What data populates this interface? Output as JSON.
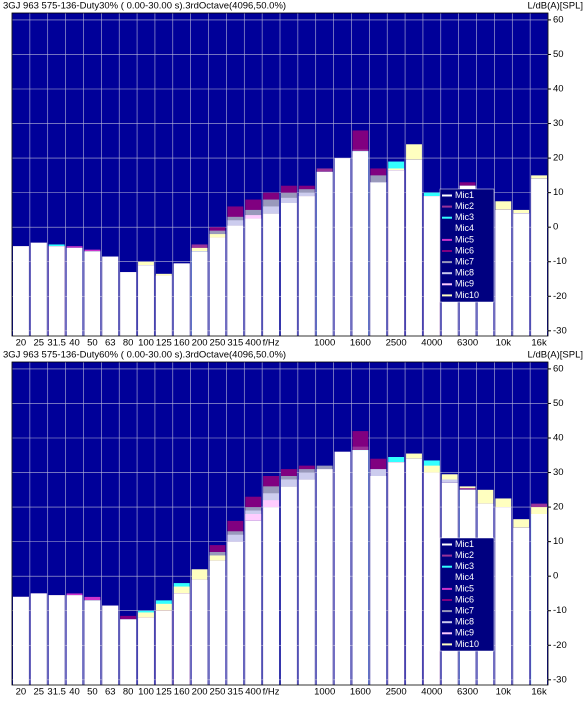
{
  "chart_data": [
    {
      "type": "bar",
      "title": "3GJ 963 575-136-Duty30% ( 0.00-30.00 s).3rdOctave(4096,50.0%)",
      "ylabel": "L/dB(A)[SPL]",
      "xlabel": "f/Hz",
      "categories": [
        "20",
        "25",
        "31.5",
        "40",
        "50",
        "63",
        "80",
        "100",
        "125",
        "160",
        "200",
        "250",
        "315",
        "400",
        null,
        null,
        null,
        "1000",
        null,
        "1600",
        null,
        "2500",
        null,
        "4000",
        null,
        "6300",
        null,
        "10k",
        null,
        "16k"
      ],
      "ylim": [
        -31.5,
        62
      ],
      "yticks": [
        -30,
        -20,
        -10,
        0,
        10,
        20,
        30,
        40,
        50,
        60
      ],
      "grid": true,
      "legend": "right",
      "background": "#000099",
      "series": [
        {
          "name": "Mic1",
          "color": "#ffffff",
          "values": [
            -5.5,
            -4.5,
            -5.5,
            -6,
            -7,
            -8.5,
            -13,
            -11,
            -14,
            -10.5,
            -7,
            -3,
            0.5,
            2.5,
            4,
            7,
            9,
            16,
            20,
            22,
            13,
            16.5,
            19.5,
            9,
            5,
            12,
            9,
            5,
            4,
            14
          ]
        },
        {
          "name": "Mic2",
          "color": "#993399",
          "values": [
            -5.5,
            -4.5,
            -5.5,
            -6,
            -7,
            -8.5,
            -13,
            -11,
            -14,
            -10.5,
            -5,
            -3,
            0.5,
            2.5,
            4,
            7,
            9,
            17,
            20,
            22.5,
            13,
            16.5,
            19.5,
            9,
            5,
            12,
            9,
            5,
            4,
            14
          ]
        },
        {
          "name": "Mic3",
          "color": "#33ffff",
          "values": [
            -5.5,
            -4.5,
            -5,
            -6,
            -7,
            -8.5,
            -13,
            -11,
            -14,
            -10.5,
            -7,
            -3,
            0.5,
            2.5,
            4,
            7,
            9,
            16,
            20,
            22,
            13,
            19,
            19.5,
            10,
            5,
            12,
            9,
            5,
            4,
            14
          ]
        },
        {
          "name": "Mic4",
          "color": "#000080",
          "values": [
            -5.5,
            -4.5,
            -5.5,
            -6,
            -7,
            -8.5,
            -13,
            -11,
            -14,
            -10.5,
            -7,
            -3,
            0.5,
            2.5,
            4,
            7,
            9,
            16,
            20,
            22,
            13,
            16.5,
            19.5,
            9,
            5,
            12,
            9,
            5,
            4,
            14
          ]
        },
        {
          "name": "Mic5",
          "color": "#cc33cc",
          "values": [
            -5.5,
            -4.5,
            -5.5,
            -5.5,
            -6.5,
            -8.5,
            -13,
            -11,
            -14,
            -10.5,
            -7,
            -3,
            0.5,
            2.5,
            4,
            7,
            9,
            16,
            20,
            22,
            13,
            16.5,
            19.5,
            9,
            5,
            12,
            9,
            5,
            4,
            14
          ]
        },
        {
          "name": "Mic6",
          "color": "#800080",
          "values": [
            -5.5,
            -4.5,
            -5.5,
            -6,
            -7,
            -8.5,
            -13,
            -11,
            -14,
            -10.5,
            -7,
            0,
            6,
            8,
            10,
            12,
            12,
            16,
            20,
            28,
            17,
            16.5,
            19.5,
            9,
            5,
            13,
            9,
            5,
            4,
            14
          ]
        },
        {
          "name": "Mic7",
          "color": "#9999bb",
          "values": [
            -5.5,
            -4.5,
            -5.5,
            -6,
            -7,
            -8.5,
            -13,
            -11,
            -14,
            -10.5,
            -7,
            -1,
            3,
            5,
            8,
            10,
            11,
            16,
            20,
            22,
            15,
            16.5,
            19.5,
            9,
            5,
            12,
            9,
            5,
            4,
            14
          ]
        },
        {
          "name": "Mic8",
          "color": "#ccccee",
          "values": [
            -5.5,
            -4.5,
            -5.5,
            -6,
            -7,
            -8.5,
            -13,
            -11,
            -14,
            -10.5,
            -7,
            -3,
            2,
            2.5,
            6,
            8.5,
            10,
            16,
            20,
            22,
            13,
            16.5,
            19.5,
            9,
            5,
            12,
            9,
            5,
            4,
            14
          ]
        },
        {
          "name": "Mic9",
          "color": "#ffccff",
          "values": [
            -5.5,
            -4.5,
            -5.5,
            -6,
            -7,
            -8.5,
            -13,
            -11,
            -14,
            -10.5,
            -7,
            -3,
            0.5,
            3.5,
            4,
            7,
            9,
            16,
            20,
            22,
            13,
            16.5,
            19.5,
            9,
            5,
            12,
            9,
            5,
            4,
            14
          ]
        },
        {
          "name": "Mic10",
          "color": "#ffffc0",
          "values": [
            -5.5,
            -4.5,
            -5.5,
            -6,
            -7,
            -8.5,
            -13,
            -10,
            -13.5,
            -10.5,
            -6,
            -2,
            0.5,
            2.5,
            4,
            7,
            9,
            16,
            20,
            22,
            13,
            17,
            24,
            9,
            5,
            12,
            10,
            7.5,
            5,
            15
          ]
        }
      ]
    },
    {
      "type": "bar",
      "title": "3GJ 963 575-136-Duty60% ( 0.00-30.00 s).3rdOctave(4096,50.0%)",
      "ylabel": "L/dB(A)[SPL]",
      "xlabel": "f/Hz",
      "categories": [
        "20",
        "25",
        "31.5",
        "40",
        "50",
        "63",
        "80",
        "100",
        "125",
        "160",
        "200",
        "250",
        "315",
        "400",
        null,
        null,
        null,
        "1000",
        null,
        "1600",
        null,
        "2500",
        null,
        "4000",
        null,
        "6300",
        null,
        "10k",
        null,
        "16k"
      ],
      "ylim": [
        -31.5,
        62
      ],
      "yticks": [
        -30,
        -20,
        -10,
        0,
        10,
        20,
        30,
        40,
        50,
        60
      ],
      "grid": true,
      "legend": "right",
      "background": "#000099",
      "series": [
        {
          "name": "Mic1",
          "color": "#ffffff",
          "values": [
            -6,
            -5,
            -5.5,
            -5.5,
            -7,
            -8.5,
            -12.5,
            -12,
            -10,
            -5,
            -1,
            4.5,
            10,
            16,
            20,
            26,
            28,
            31,
            36,
            36.5,
            29,
            33,
            34,
            30,
            27,
            25,
            21,
            20,
            14,
            18
          ]
        },
        {
          "name": "Mic2",
          "color": "#993399",
          "values": [
            -6,
            -5,
            -5.5,
            -5.5,
            -7,
            -8.5,
            -12.5,
            -12,
            -10,
            -5,
            -1,
            4.5,
            10,
            16,
            20,
            26,
            28,
            31,
            36,
            37.5,
            29,
            33,
            34,
            30,
            27,
            25.5,
            21,
            20,
            14,
            21
          ]
        },
        {
          "name": "Mic3",
          "color": "#33ffff",
          "values": [
            -6,
            -5,
            -5.5,
            -5.5,
            -7,
            -8.5,
            -12.5,
            -10,
            -7,
            -2,
            -1,
            4.5,
            10,
            16,
            20,
            26,
            28,
            31,
            36,
            36.5,
            29,
            34.5,
            34,
            33.5,
            27,
            25,
            21,
            20,
            14,
            18
          ]
        },
        {
          "name": "Mic4",
          "color": "#000080",
          "values": [
            -6,
            -5,
            -5.5,
            -5.5,
            -7,
            -8.5,
            -12.5,
            -12,
            -10,
            -5,
            -1,
            4.5,
            10,
            16,
            20,
            26,
            28,
            31,
            36,
            36.5,
            29,
            33,
            34,
            30,
            27,
            25,
            21,
            20,
            14,
            18
          ]
        },
        {
          "name": "Mic5",
          "color": "#cc33cc",
          "values": [
            -6,
            -5,
            -5.5,
            -5,
            -6,
            -8.5,
            -12.5,
            -12,
            -10,
            -5,
            -1,
            4.5,
            10,
            16,
            20,
            26,
            28,
            31,
            36,
            36.5,
            29,
            33,
            34,
            30,
            27,
            25,
            21,
            20,
            14,
            18
          ]
        },
        {
          "name": "Mic6",
          "color": "#800080",
          "values": [
            -6,
            -5,
            -5.5,
            -5.5,
            -7,
            -8.5,
            -11.5,
            -12,
            -10,
            -5,
            -1,
            9,
            16,
            23,
            29,
            31,
            32,
            31,
            36,
            42,
            34,
            33,
            34,
            30,
            27,
            25,
            21,
            20,
            14,
            18
          ]
        },
        {
          "name": "Mic7",
          "color": "#9999bb",
          "values": [
            -6,
            -5,
            -5.5,
            -5.5,
            -7,
            -8.5,
            -12.5,
            -12,
            -10,
            -5,
            -1,
            7,
            13,
            20,
            26,
            29,
            31,
            32,
            36,
            36.5,
            29,
            33,
            34,
            30,
            27,
            25,
            21,
            20,
            14,
            18
          ]
        },
        {
          "name": "Mic8",
          "color": "#ccccee",
          "values": [
            -6,
            -5,
            -5.5,
            -5.5,
            -7,
            -8.5,
            -12.5,
            -12,
            -10,
            -5,
            -1,
            4.5,
            12,
            19,
            24,
            28,
            30,
            31,
            36,
            36.5,
            31,
            33,
            34,
            30,
            28,
            25,
            21,
            20,
            14,
            18
          ]
        },
        {
          "name": "Mic9",
          "color": "#ffccff",
          "values": [
            -6,
            -5,
            -5.5,
            -5.5,
            -7,
            -8.5,
            -12.5,
            -12,
            -10,
            -5,
            -1,
            4.5,
            10,
            18,
            22,
            26,
            28,
            31,
            36,
            36.5,
            29,
            33,
            34,
            30,
            27,
            25,
            21,
            20,
            14,
            18
          ]
        },
        {
          "name": "Mic10",
          "color": "#ffffc0",
          "values": [
            -6,
            -5,
            -5.5,
            -5.5,
            -7,
            -8.5,
            -12.5,
            -10.5,
            -8,
            -3,
            2,
            6,
            10,
            16,
            20,
            26,
            28,
            31,
            36,
            36.5,
            29,
            33,
            35.5,
            32,
            29.5,
            26,
            25,
            22.5,
            16.5,
            20
          ]
        }
      ]
    }
  ]
}
